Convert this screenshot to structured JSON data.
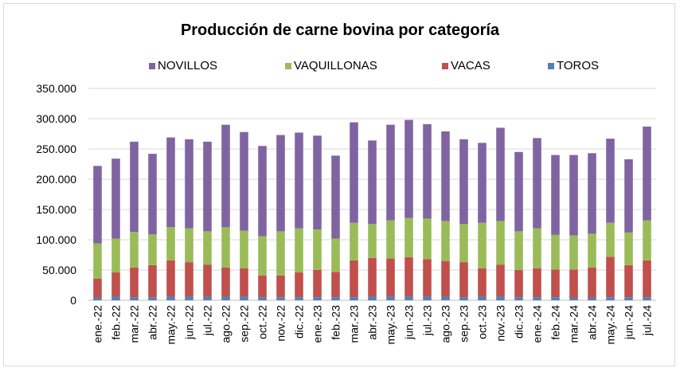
{
  "chart_data": {
    "type": "bar",
    "stacked": true,
    "title": "Producción de carne bovina por categoría",
    "xlabel": "",
    "ylabel": "",
    "ylim": [
      0,
      350000
    ],
    "yticks": [
      "0",
      "50.000",
      "100.000",
      "150.000",
      "200.000",
      "250.000",
      "300.000",
      "350.000"
    ],
    "grid": true,
    "legend_position": "top",
    "categories": [
      "ene.-22",
      "feb.-22",
      "mar.-22",
      "abr.-22",
      "may.-22",
      "jun.-22",
      "jul.-22",
      "ago.-22",
      "sep.-22",
      "oct.-22",
      "nov.-22",
      "dic.-22",
      "ene.-23",
      "feb.-23",
      "mar.-23",
      "abr.-23",
      "may.-23",
      "jun.-23",
      "jul.-23",
      "ago.-23",
      "sep.-23",
      "oct.-23",
      "nov.-23",
      "dic.-23",
      "ene.-24",
      "feb.-24",
      "mar.-24",
      "abr.-24",
      "may.-24",
      "jun.-24",
      "jul.-24"
    ],
    "series": [
      {
        "name": "TOROS",
        "color": "#4f81bd",
        "values": [
          4000,
          6000,
          5000,
          5000,
          6000,
          6000,
          6000,
          6000,
          6000,
          5000,
          5000,
          5000,
          5000,
          5000,
          5000,
          6000,
          6000,
          6000,
          6000,
          6000,
          5000,
          6000,
          6000,
          5000,
          5000,
          5000,
          4000,
          4000,
          5000,
          5000,
          5000
        ]
      },
      {
        "name": "VACAS",
        "color": "#c0504d",
        "values": [
          32000,
          40000,
          49000,
          53000,
          60000,
          57000,
          53000,
          48000,
          47000,
          36000,
          36000,
          41000,
          45000,
          42000,
          61000,
          64000,
          63000,
          65000,
          62000,
          59000,
          58000,
          47000,
          53000,
          45000,
          48000,
          46000,
          47000,
          50000,
          67000,
          53000,
          61000
        ]
      },
      {
        "name": "VAQUILLONAS",
        "color": "#9bbb59",
        "values": [
          58000,
          56000,
          59000,
          51000,
          55000,
          56000,
          55000,
          67000,
          62000,
          65000,
          73000,
          73000,
          67000,
          55000,
          62000,
          56000,
          63000,
          65000,
          67000,
          66000,
          63000,
          75000,
          72000,
          64000,
          66000,
          57000,
          56000,
          56000,
          56000,
          54000,
          66000
        ]
      },
      {
        "name": "NOVILLOS",
        "color": "#8064a2",
        "values": [
          128000,
          132000,
          149000,
          133000,
          148000,
          147000,
          148000,
          169000,
          163000,
          149000,
          159000,
          158000,
          155000,
          137000,
          166000,
          138000,
          158000,
          162000,
          156000,
          148000,
          140000,
          132000,
          154000,
          131000,
          149000,
          132000,
          133000,
          133000,
          139000,
          121000,
          155000
        ]
      }
    ]
  }
}
